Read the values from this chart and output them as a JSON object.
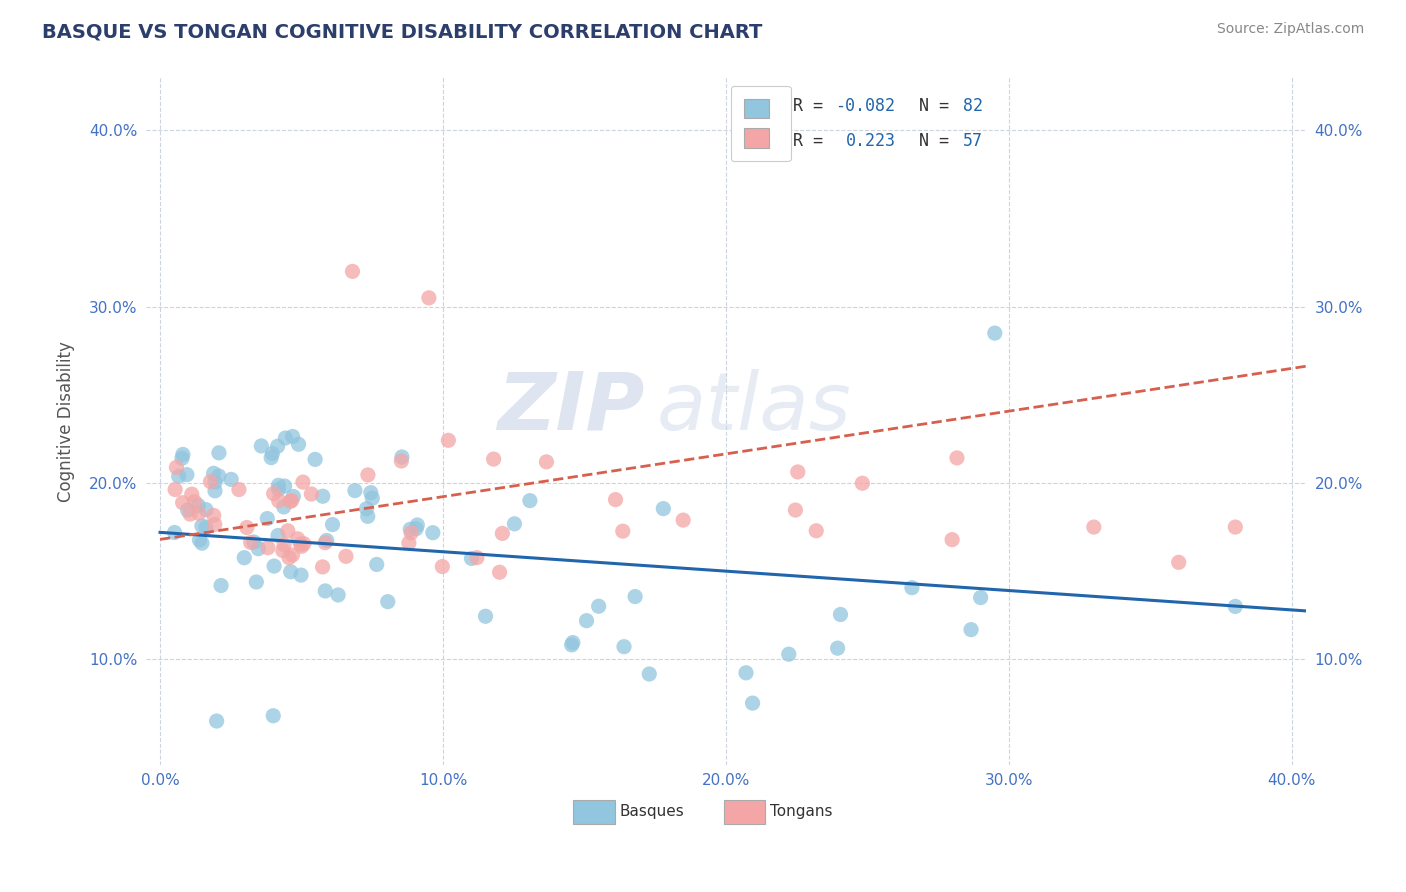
{
  "title": "BASQUE VS TONGAN COGNITIVE DISABILITY CORRELATION CHART",
  "source_text": "Source: ZipAtlas.com",
  "ylabel": "Cognitive Disability",
  "watermark_zip": "ZIP",
  "watermark_atlas": "atlas",
  "xlim": [
    -0.005,
    0.405
  ],
  "ylim": [
    0.04,
    0.43
  ],
  "xtick_vals": [
    0.0,
    0.1,
    0.2,
    0.3,
    0.4
  ],
  "xtick_labels": [
    "0.0%",
    "10.0%",
    "20.0%",
    "30.0%",
    "40.0%"
  ],
  "ytick_vals": [
    0.1,
    0.2,
    0.3,
    0.4
  ],
  "ytick_labels": [
    "10.0%",
    "20.0%",
    "30.0%",
    "40.0%"
  ],
  "basque_color": "#92c5de",
  "tongan_color": "#f4a6a6",
  "basque_line_color": "#2166ac",
  "tongan_line_color": "#d6604d",
  "grid_color": "#c8d0dc",
  "background_color": "#ffffff",
  "title_color": "#2c3e6b",
  "axis_label_color": "#555555",
  "tick_color": "#4472c4",
  "legend_text_black": "#333333",
  "legend_value_color": "#2166ac",
  "basque_R": -0.082,
  "basque_N": 82,
  "tongan_R": 0.223,
  "tongan_N": 57,
  "basque_trend_start": 0.172,
  "basque_trend_end": 0.128,
  "tongan_trend_x0": 0.0,
  "tongan_trend_y0": 0.168,
  "tongan_trend_x1": 0.4,
  "tongan_trend_y1": 0.265
}
